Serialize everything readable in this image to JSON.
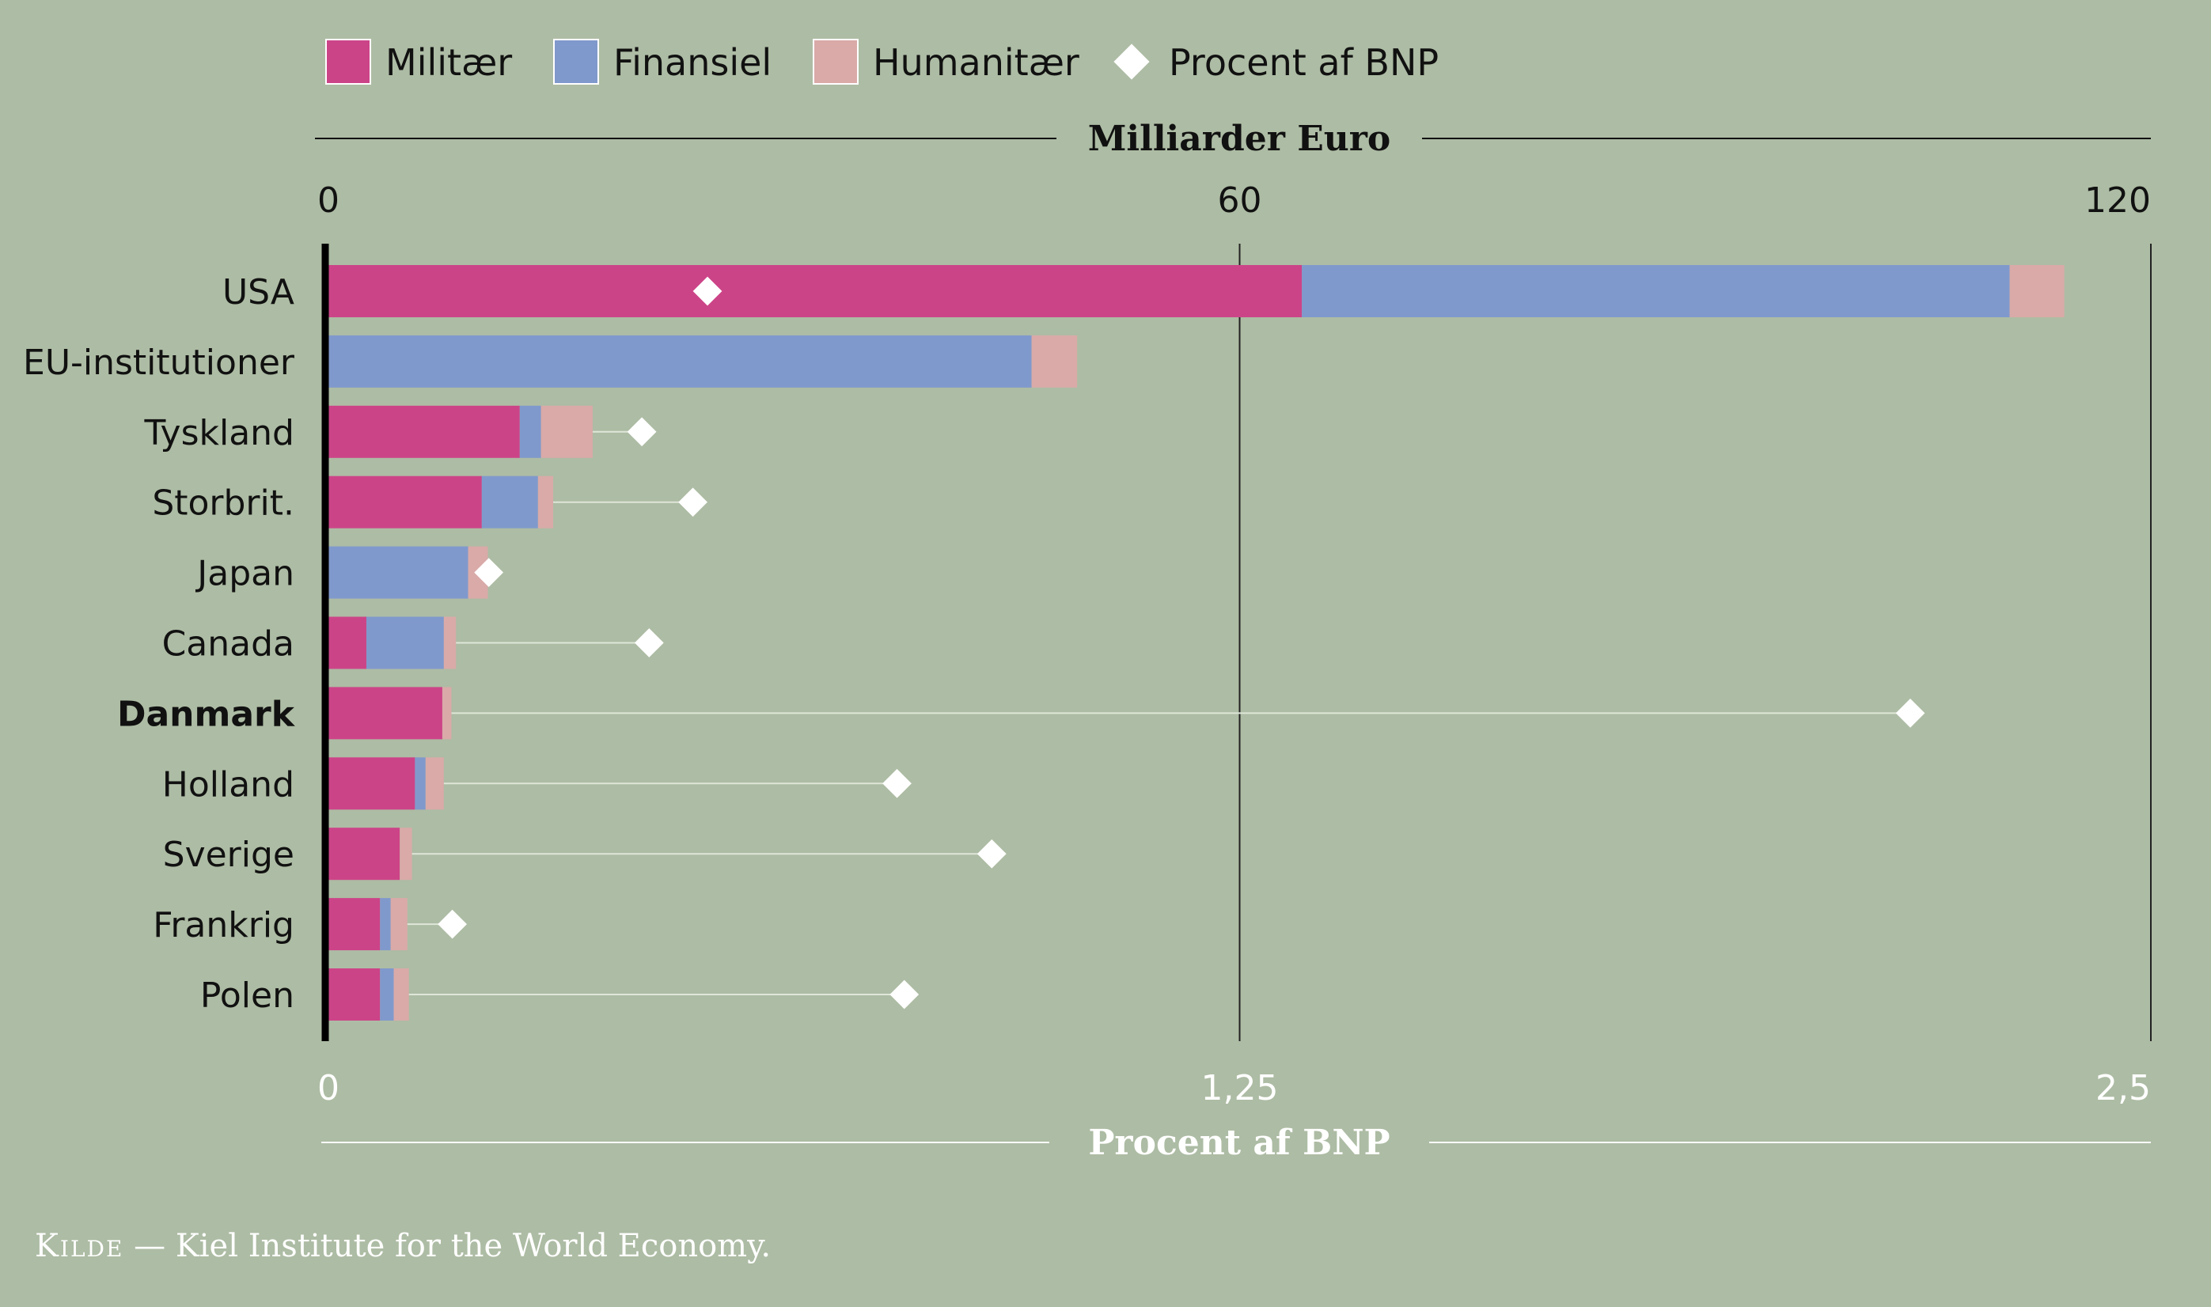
{
  "chart_data": {
    "type": "bar",
    "orientation": "horizontal",
    "stacked": true,
    "legend": {
      "placement": "top",
      "entries": [
        {
          "key": "militaer",
          "label": "Militær",
          "color": "#cc4488",
          "marker": "square"
        },
        {
          "key": "finansiel",
          "label": "Finansiel",
          "color": "#8099cc",
          "marker": "square"
        },
        {
          "key": "humanitaer",
          "label": "Humanitær",
          "color": "#d9aaa8",
          "marker": "square"
        },
        {
          "key": "pct",
          "label": "Procent af BNP",
          "color": "#ffffff",
          "marker": "diamond"
        }
      ]
    },
    "top_axis": {
      "title": "Milliarder Euro",
      "range": [
        0,
        120
      ],
      "ticks": [
        {
          "value": 0,
          "label": "0"
        },
        {
          "value": 60,
          "label": "60"
        },
        {
          "value": 120,
          "label": "120"
        }
      ]
    },
    "bottom_axis": {
      "title": "Procent af BNP",
      "range": [
        0,
        2.5
      ],
      "ticks": [
        {
          "value": 0,
          "label": "0"
        },
        {
          "value": 1.25,
          "label": "1,25"
        },
        {
          "value": 2.5,
          "label": "2,5"
        }
      ]
    },
    "categories": [
      "USA",
      "EU-institutioner",
      "Tyskland",
      "Storbrit.",
      "Japan",
      "Canada",
      "Danmark",
      "Holland",
      "Sverige",
      "Frankrig",
      "Polen"
    ],
    "highlight": "Danmark",
    "series": [
      {
        "name": "Militær",
        "key": "militaer",
        "values": [
          64.1,
          0,
          12.6,
          10.1,
          0,
          2.5,
          7.5,
          5.7,
          4.7,
          3.4,
          3.4
        ]
      },
      {
        "name": "Finansiel",
        "key": "finansiel",
        "values": [
          46.6,
          46.3,
          1.4,
          3.7,
          9.2,
          5.1,
          0,
          0.7,
          0,
          0.7,
          0.9
        ]
      },
      {
        "name": "Humanitær",
        "key": "humanitaer",
        "values": [
          3.6,
          3.0,
          3.4,
          1.0,
          1.3,
          0.8,
          0.6,
          1.2,
          0.8,
          1.1,
          1.0
        ]
      }
    ],
    "pct_of_gdp": [
      0.52,
      null,
      0.43,
      0.5,
      0.22,
      0.44,
      2.17,
      0.78,
      0.91,
      0.17,
      0.79
    ],
    "grid": true
  },
  "source": {
    "label": "Kilde",
    "text": "— Kiel Institute for the World Economy."
  }
}
